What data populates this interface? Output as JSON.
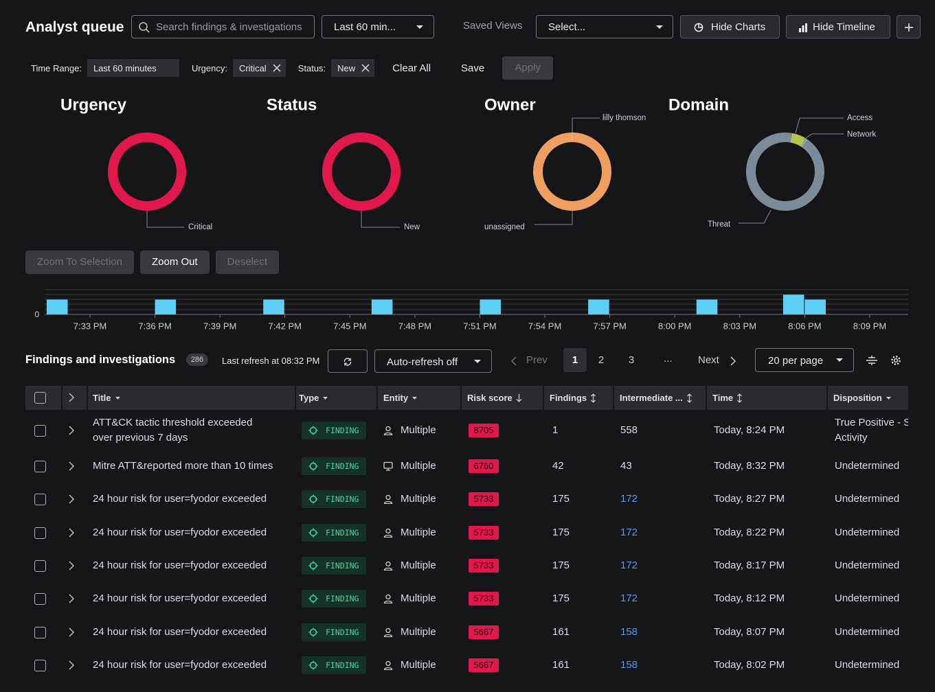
{
  "header": {
    "title": "Analyst queue",
    "search_placeholder": "Search findings & investigations",
    "time_select": "Last 60 min...",
    "saved_views_label": "Saved Views",
    "saved_views_select": "Select...",
    "hide_charts": "Hide Charts",
    "hide_timeline": "Hide Timeline"
  },
  "filters": {
    "items": [
      {
        "label": "Time Range:",
        "value": "Last 60 minutes",
        "removable": false
      },
      {
        "label": "Urgency:",
        "value": "Critical",
        "removable": true
      },
      {
        "label": "Status:",
        "value": "New",
        "removable": true
      }
    ],
    "clear_all": "Clear All",
    "save": "Save",
    "apply": "Apply"
  },
  "charts": [
    {
      "type": "donut",
      "title": "Urgency",
      "categories": [
        "Critical"
      ],
      "values": [
        100
      ],
      "colors": [
        "#e1184b"
      ]
    },
    {
      "type": "donut",
      "title": "Status",
      "categories": [
        "New"
      ],
      "values": [
        100
      ],
      "colors": [
        "#e1184b"
      ]
    },
    {
      "type": "donut",
      "title": "Owner",
      "categories": [
        "lilly thomson",
        "unassigned"
      ],
      "values": [
        1,
        99
      ],
      "colors": [
        "#f3b07a",
        "#ee9e5e"
      ]
    },
    {
      "type": "donut",
      "title": "Domain",
      "categories": [
        "Access",
        "Network",
        "Threat"
      ],
      "values": [
        6,
        1,
        93
      ],
      "colors": [
        "#b5c44a",
        "#8fa9b0",
        "#7c8b99"
      ]
    }
  ],
  "timeline": {
    "buttons": [
      {
        "label": "Zoom To Selection",
        "disabled": true
      },
      {
        "label": "Zoom Out",
        "disabled": false
      },
      {
        "label": "Deselect",
        "disabled": true
      }
    ],
    "type": "bar",
    "x": [
      "7:31 PM",
      "7:36 PM",
      "7:41 PM",
      "7:46 PM",
      "7:51 PM",
      "7:56 PM",
      "8:01 PM",
      "8:05 PM",
      "8:06 PM"
    ],
    "values": [
      3,
      3,
      3,
      3,
      3,
      3,
      3,
      4,
      3
    ],
    "color": "#5fd0f5",
    "ylim": [
      0,
      5
    ],
    "yticks": [
      0
    ],
    "xticks": [
      "7:33 PM",
      "7:36 PM",
      "7:39 PM",
      "7:42 PM",
      "7:45 PM",
      "7:48 PM",
      "7:51 PM",
      "7:54 PM",
      "7:57 PM",
      "8:00 PM",
      "8:03 PM",
      "8:06 PM",
      "8:09 PM"
    ]
  },
  "findings": {
    "title": "Findings and investigations",
    "count": 286,
    "last_refresh": "Last refresh at 08:32 PM",
    "auto_refresh": "Auto-refresh off",
    "prev": "Prev",
    "next": "Next",
    "pages": [
      1,
      2,
      3
    ],
    "current_page": 1,
    "ellipsis": "...",
    "per_page": "20 per page",
    "columns": [
      {
        "label": "Title",
        "sort": "menu"
      },
      {
        "label": "Type",
        "sort": "menu"
      },
      {
        "label": "Entity",
        "sort": "menu"
      },
      {
        "label": "Risk score",
        "sort": "desc"
      },
      {
        "label": "Findings",
        "sort": "both"
      },
      {
        "label": "Intermediate ...",
        "sort": "both"
      },
      {
        "label": "Time",
        "sort": "both"
      },
      {
        "label": "Disposition",
        "sort": "menu"
      }
    ],
    "rows": [
      {
        "title": "ATT&CK tactic threshold exceeded\nover previous 7 days",
        "type": "FINDING",
        "entity_icon": "user",
        "entity": "Multiple",
        "risk_score": 8705,
        "findings": 1,
        "intermediate": 558,
        "intermediate_link": false,
        "time": "Today, 8:24 PM",
        "disposition": "True Positive - S\nActivity"
      },
      {
        "title": "Mitre ATT&reported more than 10 times",
        "type": "FINDING",
        "entity_icon": "host",
        "entity": "Multiple",
        "risk_score": 6760,
        "findings": 42,
        "intermediate": 43,
        "intermediate_link": false,
        "time": "Today, 8:32 PM",
        "disposition": "Undetermined"
      },
      {
        "title": "24 hour risk for user=fyodor exceeded",
        "type": "FINDING",
        "entity_icon": "user",
        "entity": "Multiple",
        "risk_score": 5733,
        "findings": 175,
        "intermediate": 172,
        "intermediate_link": true,
        "time": "Today, 8:27 PM",
        "disposition": "Undetermined"
      },
      {
        "title": "24 hour risk for user=fyodor exceeded",
        "type": "FINDING",
        "entity_icon": "user",
        "entity": "Multiple",
        "risk_score": 5733,
        "findings": 175,
        "intermediate": 172,
        "intermediate_link": true,
        "time": "Today, 8:22 PM",
        "disposition": "Undetermined"
      },
      {
        "title": "24 hour risk for user=fyodor exceeded",
        "type": "FINDING",
        "entity_icon": "user",
        "entity": "Multiple",
        "risk_score": 5733,
        "findings": 175,
        "intermediate": 172,
        "intermediate_link": true,
        "time": "Today, 8:17 PM",
        "disposition": "Undetermined"
      },
      {
        "title": "24 hour risk for user=fyodor exceeded",
        "type": "FINDING",
        "entity_icon": "user",
        "entity": "Multiple",
        "risk_score": 5733,
        "findings": 175,
        "intermediate": 172,
        "intermediate_link": true,
        "time": "Today, 8:12 PM",
        "disposition": "Undetermined"
      },
      {
        "title": "24 hour risk for user=fyodor exceeded",
        "type": "FINDING",
        "entity_icon": "user",
        "entity": "Multiple",
        "risk_score": 5667,
        "findings": 161,
        "intermediate": 158,
        "intermediate_link": true,
        "time": "Today, 8:07 PM",
        "disposition": "Undetermined"
      },
      {
        "title": "24 hour risk for user=fyodor exceeded",
        "type": "FINDING",
        "entity_icon": "user",
        "entity": "Multiple",
        "risk_score": 5667,
        "findings": 161,
        "intermediate": 158,
        "intermediate_link": true,
        "time": "Today, 8:02 PM",
        "disposition": "Undetermined"
      }
    ]
  }
}
